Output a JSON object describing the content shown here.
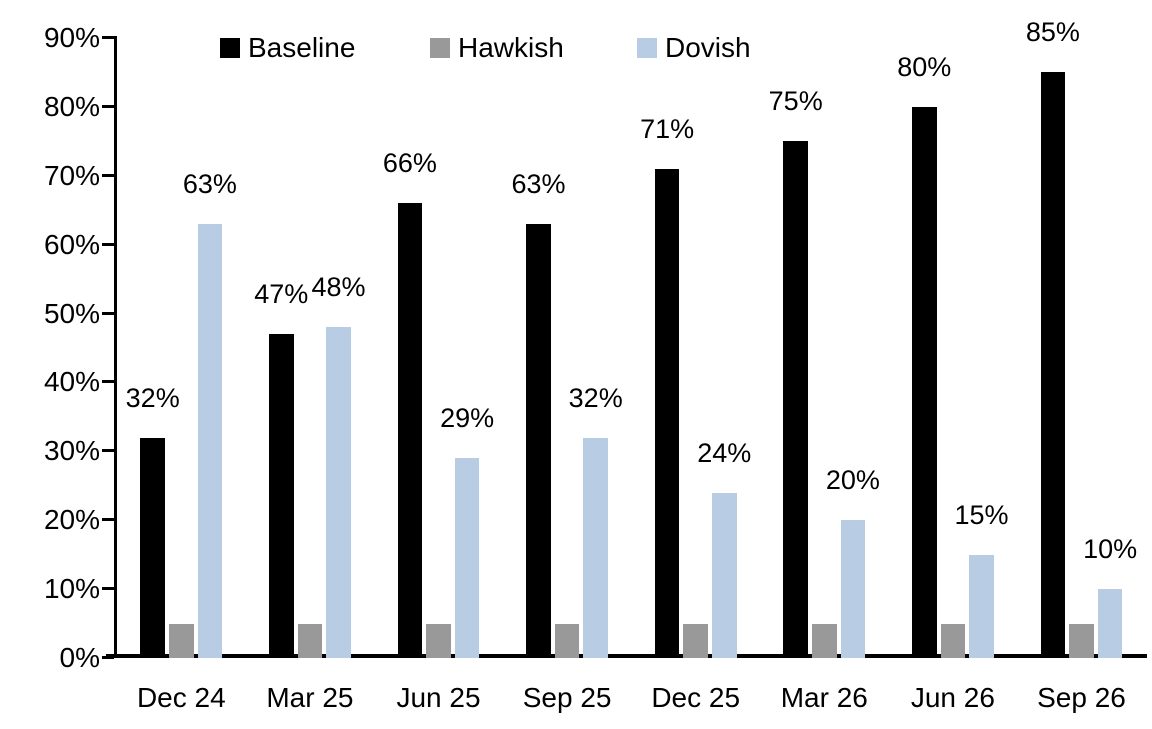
{
  "chart_data": {
    "type": "bar",
    "categories": [
      "Dec 24",
      "Mar 25",
      "Jun 25",
      "Sep 25",
      "Dec 25",
      "Mar 26",
      "Jun 26",
      "Sep 26"
    ],
    "series": [
      {
        "name": "Baseline",
        "color": "#000000",
        "values": [
          32,
          47,
          66,
          63,
          71,
          75,
          80,
          85
        ],
        "labels": [
          "32%",
          "47%",
          "66%",
          "63%",
          "71%",
          "75%",
          "80%",
          "85%"
        ]
      },
      {
        "name": "Hawkish",
        "color": "#999999",
        "values": [
          5,
          5,
          5,
          5,
          5,
          5,
          5,
          5
        ],
        "labels": null
      },
      {
        "name": "Dovish",
        "color": "#b8cce4",
        "values": [
          63,
          48,
          29,
          32,
          24,
          20,
          15,
          10
        ],
        "labels": [
          "63%",
          "48%",
          "29%",
          "32%",
          "24%",
          "20%",
          "15%",
          "10%"
        ]
      }
    ],
    "title": "",
    "xlabel": "",
    "ylabel": "",
    "ylim": [
      0,
      90
    ],
    "ytick_labels": [
      "0%",
      "10%",
      "20%",
      "30%",
      "40%",
      "50%",
      "60%",
      "70%",
      "80%",
      "90%"
    ],
    "grid": false,
    "legend_position": "top-inside",
    "legend_entries": [
      "Baseline",
      "Hawkish",
      "Dovish"
    ],
    "axis_color": "#000000",
    "background_color": "#ffffff"
  }
}
